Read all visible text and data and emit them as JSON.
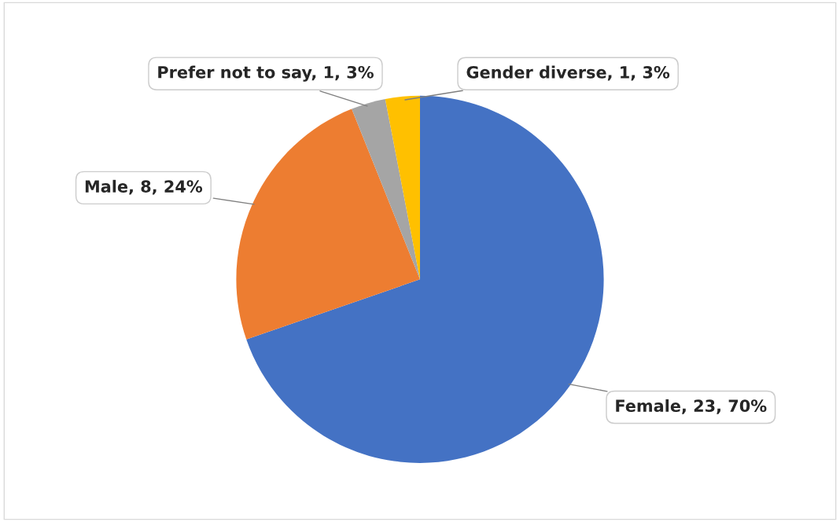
{
  "chart_data": {
    "type": "pie",
    "categories": [
      "Female",
      "Male",
      "Prefer not to say",
      "Gender diverse"
    ],
    "values": [
      23,
      8,
      1,
      1
    ],
    "colors": [
      "#4472c4",
      "#ed7d31",
      "#a5a5a5",
      "#ffc000"
    ],
    "value_labels": [
      "23, 70%",
      "8, 24%",
      "1, 3%",
      "1, 3%"
    ]
  }
}
